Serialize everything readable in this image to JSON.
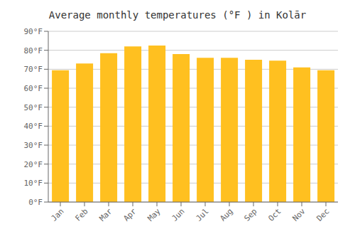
{
  "chart_data": {
    "type": "bar",
    "title": "Average monthly temperatures (°F ) in Kolār",
    "categories": [
      "Jan",
      "Feb",
      "Mar",
      "Apr",
      "May",
      "Jun",
      "Jul",
      "Aug",
      "Sep",
      "Oct",
      "Nov",
      "Dec"
    ],
    "values": [
      69.5,
      73,
      78.5,
      82,
      82.5,
      78,
      76,
      76,
      75,
      74.5,
      71,
      69.5
    ],
    "color": "#FFC020",
    "ylim": [
      0,
      90
    ],
    "yticks": [
      {
        "value": 0,
        "label": "0°F"
      },
      {
        "value": 10,
        "label": "10°F"
      },
      {
        "value": 20,
        "label": "20°F"
      },
      {
        "value": 30,
        "label": "30°F"
      },
      {
        "value": 40,
        "label": "40°F"
      },
      {
        "value": 50,
        "label": "50°F"
      },
      {
        "value": 60,
        "label": "60°F"
      },
      {
        "value": 70,
        "label": "70°F"
      },
      {
        "value": 80,
        "label": "80°F"
      },
      {
        "value": 90,
        "label": "90°F"
      }
    ],
    "grid": true
  }
}
